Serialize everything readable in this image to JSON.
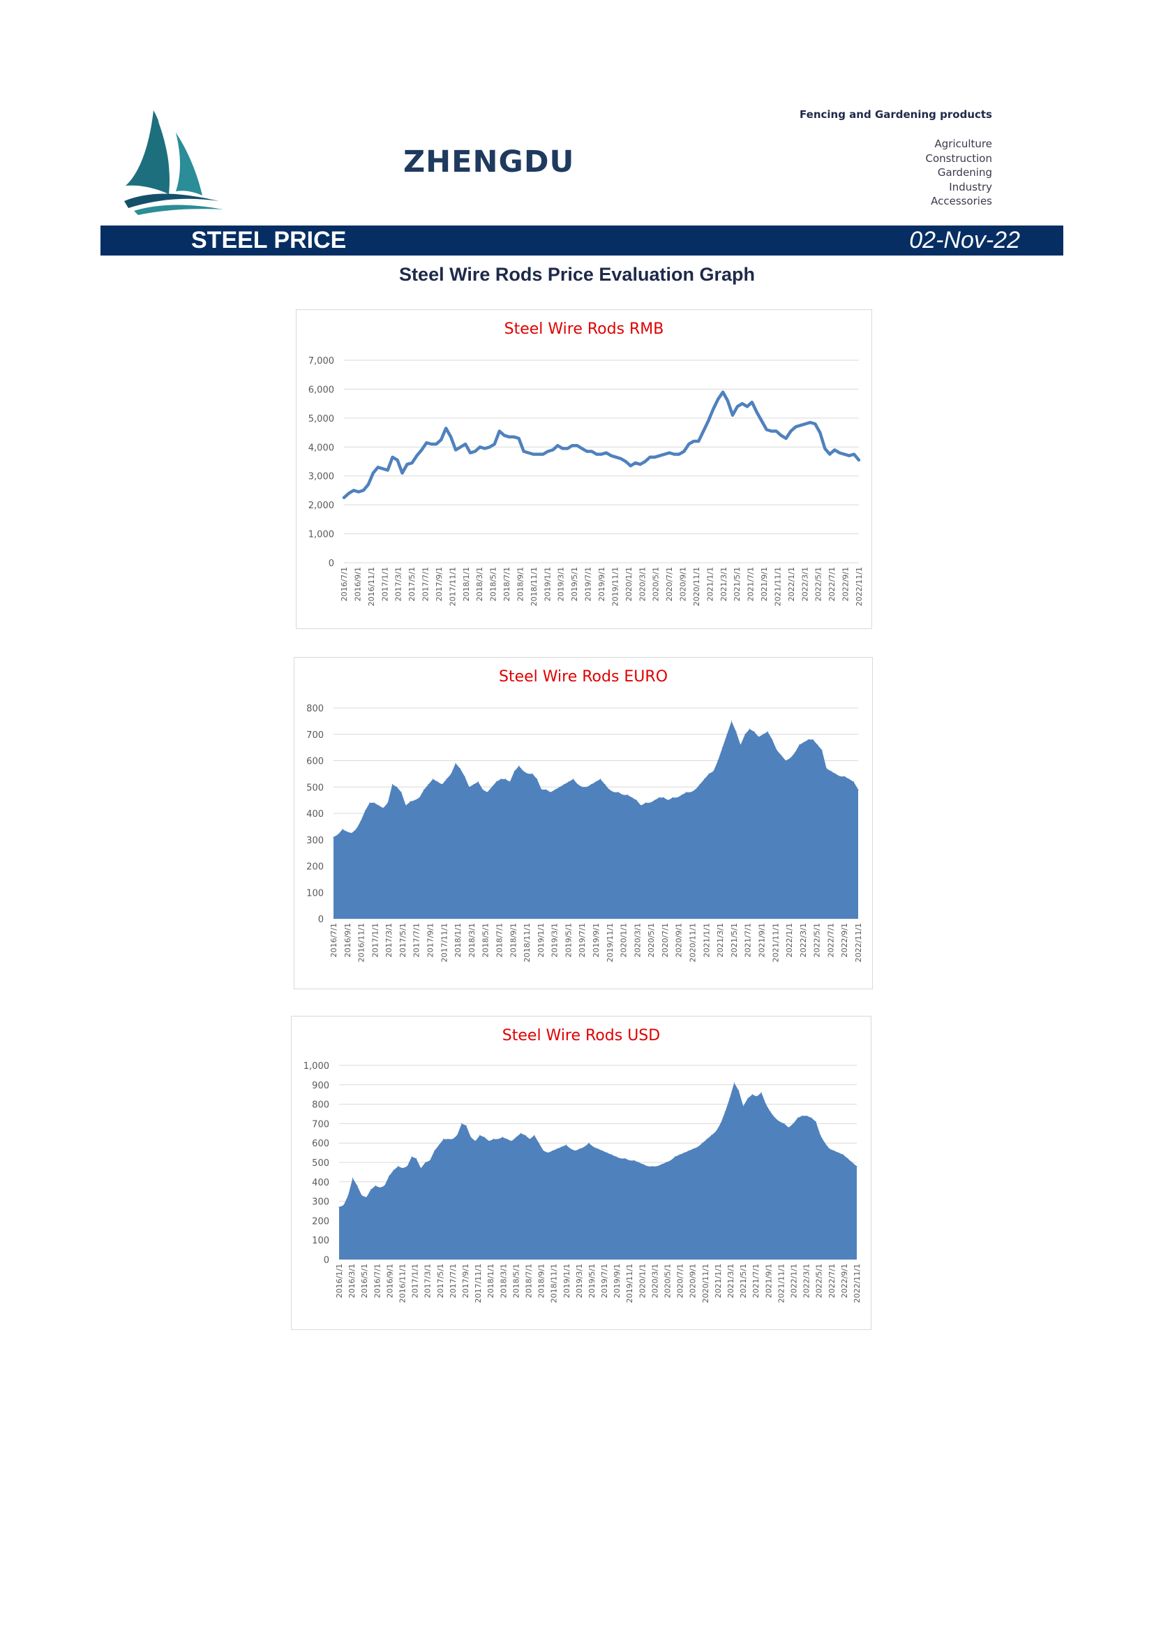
{
  "header": {
    "brand": "ZHENGDU",
    "tagline": "Fencing and Gardening products",
    "categories": [
      "Agriculture",
      "Construction",
      "Gardening",
      "Industry",
      "Accessories"
    ]
  },
  "band": {
    "title": "STEEL PRICE",
    "date": "02-Nov-22"
  },
  "section_title": "Steel Wire Rods Price Evaluation Graph",
  "colors": {
    "band": "#062e63",
    "series": "#4f81bd",
    "chart_title": "#e00000",
    "grid": "#d9d9d9"
  },
  "chart_data": [
    {
      "type": "line",
      "title": "Steel Wire Rods RMB",
      "x_start": "2016/7/1",
      "x_end": "2022/11/1",
      "ylim": [
        0,
        7000
      ],
      "yticks": [
        0,
        1000,
        2000,
        3000,
        4000,
        5000,
        6000,
        7000
      ],
      "ytick_labels": [
        "0",
        "1,000",
        "2,000",
        "3,000",
        "4,000",
        "5,000",
        "6,000",
        "7,000"
      ],
      "xtick_labels": [
        "2016/7/1",
        "2016/9/1",
        "2016/11/1",
        "2017/1/1",
        "2017/3/1",
        "2017/5/1",
        "2017/7/1",
        "2017/9/1",
        "2017/11/1",
        "2018/1/1",
        "2018/3/1",
        "2018/5/1",
        "2018/7/1",
        "2018/9/1",
        "2018/11/1",
        "2019/1/1",
        "2019/3/1",
        "2019/5/1",
        "2019/7/1",
        "2019/9/1",
        "2019/11/1",
        "2020/1/1",
        "2020/3/1",
        "2020/5/1",
        "2020/7/1",
        "2020/9/1",
        "2020/11/1",
        "2021/1/1",
        "2021/3/1",
        "2021/5/1",
        "2021/7/1",
        "2021/9/1",
        "2021/11/1",
        "2022/1/1",
        "2022/3/1",
        "2022/5/1",
        "2022/7/1",
        "2022/9/1",
        "2022/11/1"
      ],
      "values": [
        2250,
        2400,
        2500,
        2450,
        2500,
        2700,
        3100,
        3300,
        3250,
        3200,
        3650,
        3550,
        3100,
        3400,
        3450,
        3700,
        3900,
        4150,
        4100,
        4100,
        4250,
        4650,
        4350,
        3900,
        4000,
        4100,
        3800,
        3850,
        4000,
        3950,
        4000,
        4100,
        4550,
        4400,
        4350,
        4350,
        4300,
        3850,
        3800,
        3750,
        3750,
        3750,
        3850,
        3900,
        4050,
        3950,
        3950,
        4050,
        4050,
        3950,
        3850,
        3850,
        3750,
        3750,
        3800,
        3700,
        3650,
        3600,
        3500,
        3350,
        3450,
        3400,
        3500,
        3650,
        3650,
        3700,
        3750,
        3800,
        3750,
        3750,
        3850,
        4100,
        4200,
        4200,
        4550,
        4900,
        5300,
        5650,
        5900,
        5600,
        5100,
        5400,
        5500,
        5400,
        5550,
        5200,
        4900,
        4600,
        4550,
        4550,
        4400,
        4300,
        4550,
        4700,
        4750,
        4800,
        4850,
        4800,
        4500,
        3950,
        3750,
        3900,
        3800,
        3750,
        3700,
        3750,
        3550
      ],
      "legend": "none",
      "grid": true
    },
    {
      "type": "area",
      "title": "Steel Wire Rods EURO",
      "x_start": "2016/7/1",
      "x_end": "2022/11/1",
      "ylim": [
        0,
        800
      ],
      "yticks": [
        0,
        100,
        200,
        300,
        400,
        500,
        600,
        700,
        800
      ],
      "ytick_labels": [
        "0",
        "100",
        "200",
        "300",
        "400",
        "500",
        "600",
        "700",
        "800"
      ],
      "xtick_labels": [
        "2016/7/1",
        "2016/9/1",
        "2016/11/1",
        "2017/1/1",
        "2017/3/1",
        "2017/5/1",
        "2017/7/1",
        "2017/9/1",
        "2017/11/1",
        "2018/1/1",
        "2018/3/1",
        "2018/5/1",
        "2018/7/1",
        "2018/9/1",
        "2018/11/1",
        "2019/1/1",
        "2019/3/1",
        "2019/5/1",
        "2019/7/1",
        "2019/9/1",
        "2019/11/1",
        "2020/1/1",
        "2020/3/1",
        "2020/5/1",
        "2020/7/1",
        "2020/9/1",
        "2020/11/1",
        "2021/1/1",
        "2021/3/1",
        "2021/5/1",
        "2021/7/1",
        "2021/9/1",
        "2021/11/1",
        "2022/1/1",
        "2022/3/1",
        "2022/5/1",
        "2022/7/1",
        "2022/9/1",
        "2022/11/1"
      ],
      "values": [
        310,
        320,
        340,
        330,
        325,
        340,
        370,
        410,
        440,
        440,
        430,
        420,
        440,
        510,
        500,
        480,
        430,
        445,
        450,
        460,
        490,
        510,
        530,
        520,
        510,
        530,
        550,
        590,
        570,
        540,
        500,
        510,
        520,
        490,
        480,
        500,
        520,
        530,
        530,
        520,
        560,
        580,
        560,
        550,
        550,
        530,
        490,
        490,
        480,
        490,
        500,
        510,
        520,
        530,
        510,
        500,
        500,
        510,
        520,
        530,
        510,
        490,
        480,
        480,
        470,
        470,
        460,
        450,
        430,
        440,
        440,
        450,
        460,
        460,
        450,
        460,
        460,
        470,
        480,
        480,
        490,
        510,
        530,
        550,
        560,
        600,
        650,
        700,
        750,
        710,
        660,
        700,
        720,
        710,
        690,
        700,
        710,
        680,
        640,
        620,
        600,
        610,
        630,
        660,
        670,
        680,
        680,
        660,
        640,
        570,
        560,
        550,
        540,
        540,
        530,
        520,
        490
      ],
      "legend": "none",
      "grid": true
    },
    {
      "type": "area",
      "title": "Steel Wire Rods USD",
      "x_start": "2016/1/1",
      "x_end": "2022/11/1",
      "ylim": [
        0,
        1000
      ],
      "yticks": [
        0,
        100,
        200,
        300,
        400,
        500,
        600,
        700,
        800,
        900,
        1000
      ],
      "ytick_labels": [
        "0",
        "100",
        "200",
        "300",
        "400",
        "500",
        "600",
        "700",
        "800",
        "900",
        "1,000"
      ],
      "xtick_labels": [
        "2016/1/1",
        "2016/3/1",
        "2016/5/1",
        "2016/7/1",
        "2016/9/1",
        "2016/11/1",
        "2017/1/1",
        "2017/3/1",
        "2017/5/1",
        "2017/7/1",
        "2017/9/1",
        "2017/11/1",
        "2018/1/1",
        "2018/3/1",
        "2018/5/1",
        "2018/7/1",
        "2018/9/1",
        "2018/11/1",
        "2019/1/1",
        "2019/3/1",
        "2019/5/1",
        "2019/7/1",
        "2019/9/1",
        "2019/11/1",
        "2020/1/1",
        "2020/3/1",
        "2020/5/1",
        "2020/7/1",
        "2020/9/1",
        "2020/11/1",
        "2021/1/1",
        "2021/3/1",
        "2021/5/1",
        "2021/7/1",
        "2021/9/1",
        "2021/11/1",
        "2022/1/1",
        "2022/3/1",
        "2022/5/1",
        "2022/7/1",
        "2022/9/1",
        "2022/11/1"
      ],
      "values": [
        270,
        280,
        330,
        420,
        380,
        330,
        320,
        360,
        380,
        370,
        380,
        430,
        460,
        480,
        470,
        480,
        530,
        520,
        470,
        500,
        510,
        560,
        590,
        620,
        620,
        620,
        640,
        700,
        690,
        630,
        610,
        640,
        630,
        610,
        620,
        620,
        630,
        620,
        610,
        630,
        650,
        640,
        620,
        640,
        600,
        560,
        550,
        560,
        570,
        580,
        590,
        570,
        560,
        570,
        580,
        600,
        580,
        570,
        560,
        550,
        540,
        530,
        520,
        520,
        510,
        510,
        500,
        490,
        480,
        480,
        480,
        490,
        500,
        510,
        530,
        540,
        550,
        560,
        570,
        580,
        600,
        620,
        640,
        660,
        700,
        760,
        830,
        910,
        870,
        790,
        830,
        850,
        840,
        860,
        800,
        760,
        730,
        710,
        700,
        680,
        700,
        730,
        740,
        740,
        730,
        710,
        640,
        600,
        570,
        560,
        550,
        540,
        520,
        500,
        480
      ],
      "legend": "none",
      "grid": true
    }
  ]
}
